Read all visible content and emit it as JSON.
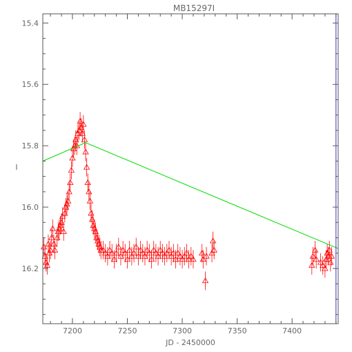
{
  "chart_data": {
    "type": "scatter",
    "title": "MB15297I",
    "xlabel": "JD - 2450000",
    "ylabel": "I",
    "xlim": [
      7173,
      7442
    ],
    "ylim": [
      16.38,
      15.37
    ],
    "y_inverted": true,
    "x_ticks": [
      7200,
      7250,
      7300,
      7350,
      7400
    ],
    "y_ticks": [
      {
        "value": 15.4,
        "label": "15.4"
      },
      {
        "value": 15.6,
        "label": "15.6"
      },
      {
        "value": 15.8,
        "label": "15.8"
      },
      {
        "value": 16.0,
        "label": "16.0"
      },
      {
        "value": 16.2,
        "label": "16.2"
      }
    ],
    "grid": false,
    "series": [
      {
        "marker": "open-triangle",
        "color": "#ff0000",
        "points": [
          {
            "x": 7174,
            "y": 16.13,
            "err": 0.03
          },
          {
            "x": 7175,
            "y": 16.16,
            "err": 0.03
          },
          {
            "x": 7176,
            "y": 16.18,
            "err": 0.03
          },
          {
            "x": 7177,
            "y": 16.19,
            "err": 0.03
          },
          {
            "x": 7178,
            "y": 16.12,
            "err": 0.03
          },
          {
            "x": 7179,
            "y": 16.15,
            "err": 0.03
          },
          {
            "x": 7180,
            "y": 16.14,
            "err": 0.03
          },
          {
            "x": 7181,
            "y": 16.1,
            "err": 0.03
          },
          {
            "x": 7182,
            "y": 16.07,
            "err": 0.03
          },
          {
            "x": 7183,
            "y": 16.12,
            "err": 0.03
          },
          {
            "x": 7184,
            "y": 16.14,
            "err": 0.03
          },
          {
            "x": 7186,
            "y": 16.1,
            "err": 0.03
          },
          {
            "x": 7187,
            "y": 16.08,
            "err": 0.03
          },
          {
            "x": 7188,
            "y": 16.07,
            "err": 0.03
          },
          {
            "x": 7189,
            "y": 16.06,
            "err": 0.03
          },
          {
            "x": 7190,
            "y": 16.05,
            "err": 0.03
          },
          {
            "x": 7191,
            "y": 16.03,
            "err": 0.03
          },
          {
            "x": 7192,
            "y": 16.08,
            "err": 0.03
          },
          {
            "x": 7193,
            "y": 16.02,
            "err": 0.03
          },
          {
            "x": 7194,
            "y": 16.0,
            "err": 0.03
          },
          {
            "x": 7195,
            "y": 15.99,
            "err": 0.03
          },
          {
            "x": 7196,
            "y": 15.98,
            "err": 0.03
          },
          {
            "x": 7197,
            "y": 15.95,
            "err": 0.03
          },
          {
            "x": 7198,
            "y": 15.92,
            "err": 0.03
          },
          {
            "x": 7199,
            "y": 15.88,
            "err": 0.03
          },
          {
            "x": 7200,
            "y": 15.84,
            "err": 0.03
          },
          {
            "x": 7201,
            "y": 15.81,
            "err": 0.03
          },
          {
            "x": 7202,
            "y": 15.8,
            "err": 0.03
          },
          {
            "x": 7203,
            "y": 15.78,
            "err": 0.03
          },
          {
            "x": 7204,
            "y": 15.8,
            "err": 0.03
          },
          {
            "x": 7205,
            "y": 15.76,
            "err": 0.03
          },
          {
            "x": 7206,
            "y": 15.75,
            "err": 0.03
          },
          {
            "x": 7207,
            "y": 15.72,
            "err": 0.03
          },
          {
            "x": 7208,
            "y": 15.74,
            "err": 0.03
          },
          {
            "x": 7209,
            "y": 15.76,
            "err": 0.03
          },
          {
            "x": 7210,
            "y": 15.73,
            "err": 0.03
          },
          {
            "x": 7211,
            "y": 15.78,
            "err": 0.03
          },
          {
            "x": 7212,
            "y": 15.82,
            "err": 0.03
          },
          {
            "x": 7213,
            "y": 15.87,
            "err": 0.03
          },
          {
            "x": 7214,
            "y": 15.92,
            "err": 0.03
          },
          {
            "x": 7215,
            "y": 15.95,
            "err": 0.03
          },
          {
            "x": 7216,
            "y": 15.98,
            "err": 0.03
          },
          {
            "x": 7217,
            "y": 16.02,
            "err": 0.03
          },
          {
            "x": 7218,
            "y": 16.04,
            "err": 0.03
          },
          {
            "x": 7219,
            "y": 16.06,
            "err": 0.03
          },
          {
            "x": 7220,
            "y": 16.07,
            "err": 0.03
          },
          {
            "x": 7221,
            "y": 16.08,
            "err": 0.03
          },
          {
            "x": 7222,
            "y": 16.1,
            "err": 0.03
          },
          {
            "x": 7223,
            "y": 16.11,
            "err": 0.03
          },
          {
            "x": 7224,
            "y": 16.12,
            "err": 0.03
          },
          {
            "x": 7225,
            "y": 16.13,
            "err": 0.03
          },
          {
            "x": 7226,
            "y": 16.14,
            "err": 0.03
          },
          {
            "x": 7228,
            "y": 16.14,
            "err": 0.03
          },
          {
            "x": 7230,
            "y": 16.15,
            "err": 0.03
          },
          {
            "x": 7232,
            "y": 16.16,
            "err": 0.03
          },
          {
            "x": 7234,
            "y": 16.14,
            "err": 0.03
          },
          {
            "x": 7236,
            "y": 16.15,
            "err": 0.03
          },
          {
            "x": 7238,
            "y": 16.17,
            "err": 0.03
          },
          {
            "x": 7240,
            "y": 16.15,
            "err": 0.03
          },
          {
            "x": 7242,
            "y": 16.13,
            "err": 0.03
          },
          {
            "x": 7244,
            "y": 16.16,
            "err": 0.03
          },
          {
            "x": 7246,
            "y": 16.14,
            "err": 0.03
          },
          {
            "x": 7248,
            "y": 16.15,
            "err": 0.03
          },
          {
            "x": 7250,
            "y": 16.17,
            "err": 0.03
          },
          {
            "x": 7252,
            "y": 16.14,
            "err": 0.03
          },
          {
            "x": 7254,
            "y": 16.16,
            "err": 0.03
          },
          {
            "x": 7256,
            "y": 16.15,
            "err": 0.03
          },
          {
            "x": 7258,
            "y": 16.13,
            "err": 0.03
          },
          {
            "x": 7260,
            "y": 16.16,
            "err": 0.03
          },
          {
            "x": 7262,
            "y": 16.14,
            "err": 0.03
          },
          {
            "x": 7264,
            "y": 16.15,
            "err": 0.03
          },
          {
            "x": 7266,
            "y": 16.16,
            "err": 0.03
          },
          {
            "x": 7268,
            "y": 16.14,
            "err": 0.03
          },
          {
            "x": 7270,
            "y": 16.15,
            "err": 0.03
          },
          {
            "x": 7272,
            "y": 16.17,
            "err": 0.03
          },
          {
            "x": 7274,
            "y": 16.14,
            "err": 0.03
          },
          {
            "x": 7276,
            "y": 16.15,
            "err": 0.03
          },
          {
            "x": 7278,
            "y": 16.16,
            "err": 0.03
          },
          {
            "x": 7280,
            "y": 16.14,
            "err": 0.03
          },
          {
            "x": 7282,
            "y": 16.15,
            "err": 0.03
          },
          {
            "x": 7284,
            "y": 16.16,
            "err": 0.03
          },
          {
            "x": 7286,
            "y": 16.15,
            "err": 0.03
          },
          {
            "x": 7288,
            "y": 16.14,
            "err": 0.03
          },
          {
            "x": 7290,
            "y": 16.16,
            "err": 0.03
          },
          {
            "x": 7292,
            "y": 16.15,
            "err": 0.03
          },
          {
            "x": 7294,
            "y": 16.17,
            "err": 0.03
          },
          {
            "x": 7296,
            "y": 16.15,
            "err": 0.03
          },
          {
            "x": 7298,
            "y": 16.16,
            "err": 0.03
          },
          {
            "x": 7300,
            "y": 16.17,
            "err": 0.03
          },
          {
            "x": 7302,
            "y": 16.16,
            "err": 0.03
          },
          {
            "x": 7304,
            "y": 16.15,
            "err": 0.03
          },
          {
            "x": 7306,
            "y": 16.17,
            "err": 0.03
          },
          {
            "x": 7308,
            "y": 16.16,
            "err": 0.03
          },
          {
            "x": 7310,
            "y": 16.17,
            "err": 0.03
          },
          {
            "x": 7318,
            "y": 16.15,
            "err": 0.03
          },
          {
            "x": 7319,
            "y": 16.17,
            "err": 0.03
          },
          {
            "x": 7321,
            "y": 16.24,
            "err": 0.03
          },
          {
            "x": 7322,
            "y": 16.16,
            "err": 0.03
          },
          {
            "x": 7327,
            "y": 16.15,
            "err": 0.03
          },
          {
            "x": 7328,
            "y": 16.11,
            "err": 0.03
          },
          {
            "x": 7329,
            "y": 16.14,
            "err": 0.03
          },
          {
            "x": 7418,
            "y": 16.19,
            "err": 0.03
          },
          {
            "x": 7419,
            "y": 16.16,
            "err": 0.03
          },
          {
            "x": 7421,
            "y": 16.14,
            "err": 0.03
          },
          {
            "x": 7422,
            "y": 16.17,
            "err": 0.03
          },
          {
            "x": 7426,
            "y": 16.18,
            "err": 0.03
          },
          {
            "x": 7428,
            "y": 16.19,
            "err": 0.03
          },
          {
            "x": 7430,
            "y": 16.2,
            "err": 0.03
          },
          {
            "x": 7431,
            "y": 16.17,
            "err": 0.03
          },
          {
            "x": 7432,
            "y": 16.15,
            "err": 0.03
          },
          {
            "x": 7433,
            "y": 16.16,
            "err": 0.03
          },
          {
            "x": 7434,
            "y": 16.14,
            "err": 0.03
          },
          {
            "x": 7435,
            "y": 16.18,
            "err": 0.03
          },
          {
            "x": 7436,
            "y": 16.16,
            "err": 0.03
          }
        ]
      },
      {
        "marker": "line",
        "color": "#00dd00",
        "points": [
          {
            "x": 7173,
            "y": 15.85
          },
          {
            "x": 7212,
            "y": 15.79
          },
          {
            "x": 7442,
            "y": 16.135
          }
        ]
      }
    ],
    "right_boundary_line": {
      "x": 7440,
      "color": "#3333cc"
    }
  }
}
